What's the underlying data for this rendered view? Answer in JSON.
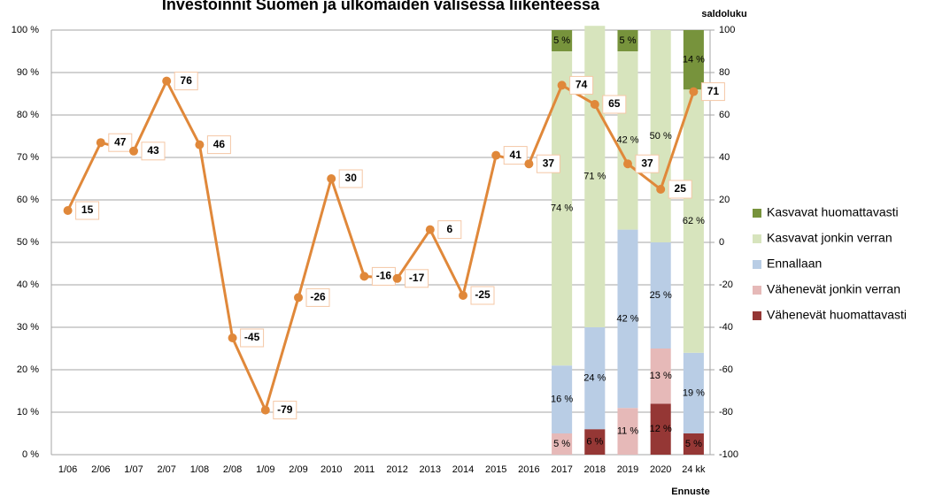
{
  "chart_data": {
    "type": "bar-line",
    "title": "Investoinnit Suomen ja ulkomaiden välisessä liikenteessä",
    "y2_label": "saldoluku",
    "x_note": "Ennuste",
    "categories": [
      "1/06",
      "2/06",
      "1/07",
      "2/07",
      "1/08",
      "2/08",
      "1/09",
      "2/09",
      "2010",
      "2011",
      "2012",
      "2013",
      "2014",
      "2015",
      "2016",
      "2017",
      "2018",
      "2019",
      "2020",
      "24 kk"
    ],
    "ylim": [
      0,
      100
    ],
    "yticks": [
      {
        "value": 0,
        "label": "0 %"
      },
      {
        "value": 10,
        "label": "10 %"
      },
      {
        "value": 20,
        "label": "20 %"
      },
      {
        "value": 30,
        "label": "30 %"
      },
      {
        "value": 40,
        "label": "40 %"
      },
      {
        "value": 50,
        "label": "50 %"
      },
      {
        "value": 60,
        "label": "60 %"
      },
      {
        "value": 70,
        "label": "70 %"
      },
      {
        "value": 80,
        "label": "80 %"
      },
      {
        "value": 90,
        "label": "90 %"
      },
      {
        "value": 100,
        "label": "100 %"
      }
    ],
    "y2lim": [
      -100,
      100
    ],
    "y2ticks": [
      -100,
      -80,
      -60,
      -40,
      -20,
      0,
      20,
      40,
      60,
      80,
      100
    ],
    "grid": true,
    "legend": "right",
    "series": [
      {
        "name": "Vähenevät huomattavasti",
        "color": "#953735",
        "values": [
          null,
          null,
          null,
          null,
          null,
          null,
          null,
          null,
          null,
          null,
          null,
          null,
          null,
          null,
          null,
          0,
          6,
          0,
          12,
          5
        ],
        "value_labels": [
          null,
          null,
          null,
          null,
          null,
          null,
          null,
          null,
          null,
          null,
          null,
          null,
          null,
          null,
          null,
          null,
          "6 %",
          null,
          "12 %",
          "5 %"
        ]
      },
      {
        "name": "Vähenevät jonkin verran",
        "color": "#e6b9b8",
        "values": [
          null,
          null,
          null,
          null,
          null,
          null,
          null,
          null,
          null,
          null,
          null,
          null,
          null,
          null,
          null,
          5,
          0,
          11,
          13,
          0
        ],
        "value_labels": [
          null,
          null,
          null,
          null,
          null,
          null,
          null,
          null,
          null,
          null,
          null,
          null,
          null,
          null,
          null,
          "5 %",
          null,
          "11 %",
          "13 %",
          null
        ]
      },
      {
        "name": "Ennallaan",
        "color": "#b9cde5",
        "values": [
          null,
          null,
          null,
          null,
          null,
          null,
          null,
          null,
          null,
          null,
          null,
          null,
          null,
          null,
          null,
          16,
          24,
          42,
          25,
          19
        ],
        "value_labels": [
          null,
          null,
          null,
          null,
          null,
          null,
          null,
          null,
          null,
          null,
          null,
          null,
          null,
          null,
          null,
          "16 %",
          "24 %",
          "42 %",
          "25 %",
          "19 %"
        ]
      },
      {
        "name": "Kasvavat jonkin verran",
        "color": "#d7e4bd",
        "values": [
          null,
          null,
          null,
          null,
          null,
          null,
          null,
          null,
          null,
          null,
          null,
          null,
          null,
          null,
          null,
          74,
          71,
          42,
          50,
          62
        ],
        "value_labels": [
          null,
          null,
          null,
          null,
          null,
          null,
          null,
          null,
          null,
          null,
          null,
          null,
          null,
          null,
          null,
          "74 %",
          "71 %",
          "42 %",
          "50 %",
          "62 %"
        ]
      },
      {
        "name": "Kasvavat huomattavasti",
        "color": "#77933c",
        "values": [
          null,
          null,
          null,
          null,
          null,
          null,
          null,
          null,
          null,
          null,
          null,
          null,
          null,
          null,
          null,
          5,
          0,
          5,
          0,
          14
        ],
        "value_labels": [
          null,
          null,
          null,
          null,
          null,
          null,
          null,
          null,
          null,
          null,
          null,
          null,
          null,
          null,
          null,
          "5 %",
          null,
          "5 %",
          null,
          "14 %"
        ]
      }
    ],
    "line": {
      "color": "#e0883a",
      "axis": "y2",
      "values": [
        15,
        47,
        43,
        76,
        46,
        -45,
        -79,
        -26,
        30,
        -16,
        -17,
        6,
        -25,
        41,
        37,
        74,
        65,
        37,
        25,
        71
      ]
    }
  }
}
